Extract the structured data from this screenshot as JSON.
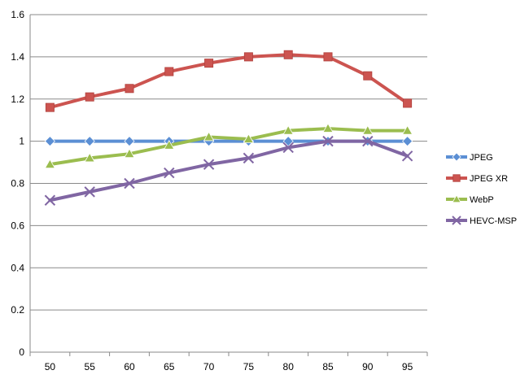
{
  "chart_data": {
    "type": "line",
    "title": "",
    "xlabel": "",
    "ylabel": "",
    "x": [
      50,
      55,
      60,
      65,
      70,
      75,
      80,
      85,
      90,
      95
    ],
    "x_tick_labels": [
      "50",
      "55",
      "60",
      "65",
      "70",
      "75",
      "80",
      "85",
      "90",
      "95"
    ],
    "ylim": [
      0,
      1.6
    ],
    "y_ticks": [
      0,
      0.2,
      0.4,
      0.6,
      0.8,
      1,
      1.2,
      1.4,
      1.6
    ],
    "y_tick_labels": [
      "0",
      "0.2",
      "0.4",
      "0.6",
      "0.8",
      "1",
      "1.2",
      "1.4",
      "1.6"
    ],
    "grid": "horizontal",
    "legend_position": "right",
    "series": [
      {
        "name": "JPEG",
        "color": "#5b8fd4",
        "marker": "diamond",
        "values": [
          1,
          1,
          1,
          1,
          1,
          1,
          1,
          1,
          1,
          1
        ]
      },
      {
        "name": "JPEG XR",
        "color": "#cc5450",
        "marker": "square",
        "values": [
          1.16,
          1.21,
          1.25,
          1.33,
          1.37,
          1.4,
          1.41,
          1.4,
          1.31,
          1.18
        ]
      },
      {
        "name": "WebP",
        "color": "#9bbd4f",
        "marker": "triangle",
        "values": [
          0.89,
          0.92,
          0.94,
          0.98,
          1.02,
          1.01,
          1.05,
          1.06,
          1.05,
          1.05
        ]
      },
      {
        "name": "HEVC-MSP",
        "color": "#8066a3",
        "marker": "x",
        "values": [
          0.72,
          0.76,
          0.8,
          0.85,
          0.89,
          0.92,
          0.97,
          1.0,
          1.0,
          0.93
        ]
      }
    ]
  }
}
